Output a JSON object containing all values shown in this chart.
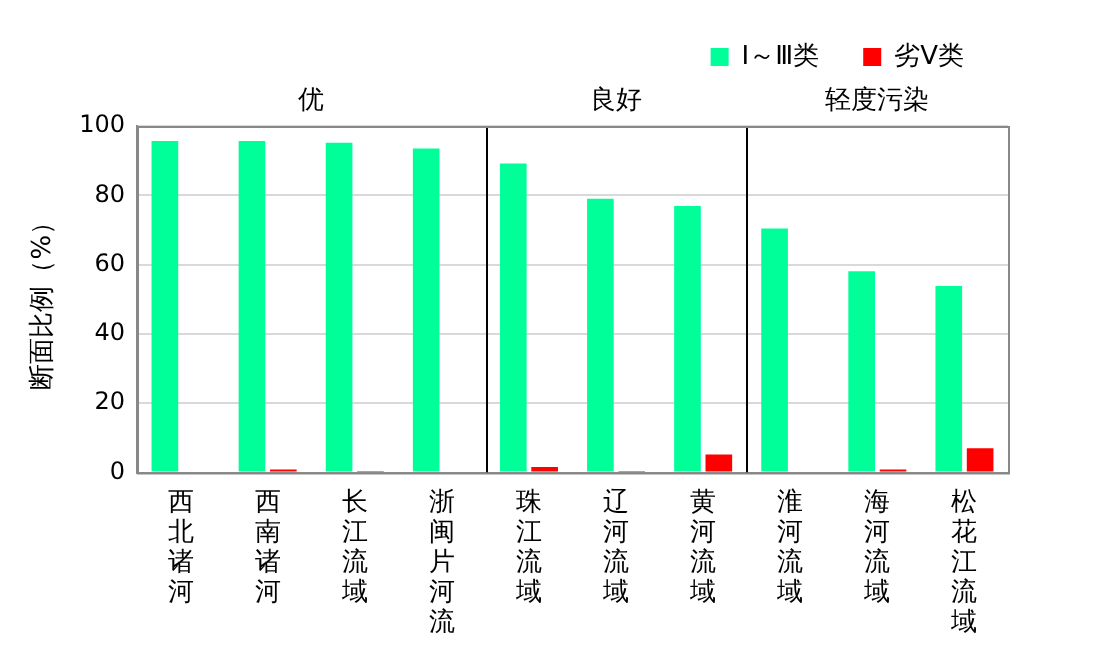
{
  "chart_data": {
    "type": "bar",
    "ylabel": "断面比例（%）",
    "categories": [
      "西北诸河",
      "西南诸河",
      "长江流域",
      "浙闽片河流",
      "珠江流域",
      "辽河流域",
      "黄河流域",
      "淮河流域",
      "海河流域",
      "松花江流域"
    ],
    "series": [
      {
        "name": "Ⅰ～Ⅲ类",
        "color": "#00ff99",
        "values": [
          95.7,
          95.7,
          95.2,
          93.5,
          89.2,
          79.0,
          76.9,
          70.4,
          58.1,
          53.8
        ]
      },
      {
        "name": "劣Ⅴ类",
        "color": "#ff0000",
        "values": [
          0,
          0.9,
          0.4,
          0,
          1.6,
          0.4,
          5.2,
          0,
          0.9,
          7.0
        ]
      }
    ],
    "annotations": [
      "优",
      "良好",
      "轻度污染"
    ],
    "ylim": [
      0,
      100
    ],
    "yticks": [
      0,
      20,
      40,
      60,
      80,
      100
    ],
    "grid": "y",
    "legend": "top"
  }
}
